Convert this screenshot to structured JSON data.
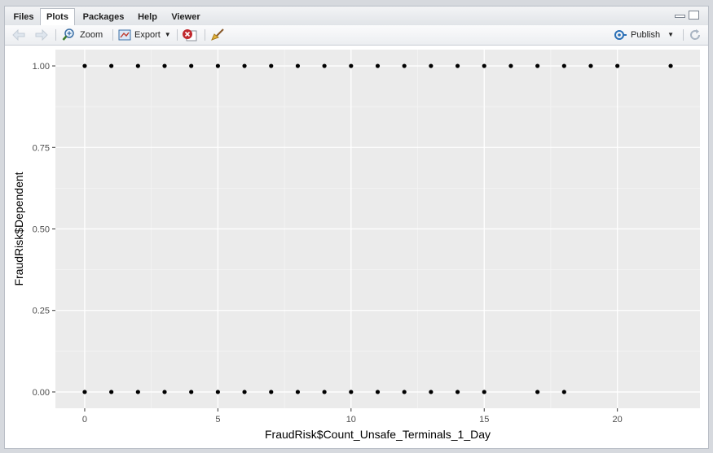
{
  "tabs": [
    {
      "label": "Files",
      "active": false
    },
    {
      "label": "Plots",
      "active": true
    },
    {
      "label": "Packages",
      "active": false
    },
    {
      "label": "Help",
      "active": false
    },
    {
      "label": "Viewer",
      "active": false
    }
  ],
  "toolbar": {
    "back_icon": "arrow-left-icon",
    "forward_icon": "arrow-right-icon",
    "zoom_label": "Zoom",
    "export_label": "Export",
    "remove_icon": "remove-plot-icon",
    "clear_icon": "broom-icon",
    "publish_label": "Publish",
    "refresh_icon": "refresh-icon"
  },
  "chart_data": {
    "type": "scatter",
    "xlabel": "FraudRisk$Count_Unsafe_Terminals_1_Day",
    "ylabel": "FraudRisk$Dependent",
    "xlim": [
      -1.1,
      23.1
    ],
    "ylim": [
      -0.05,
      1.05
    ],
    "x_ticks": [
      0,
      5,
      10,
      15,
      20
    ],
    "x_tick_labels": [
      "0",
      "5",
      "10",
      "15",
      "20"
    ],
    "y_ticks": [
      0,
      0.25,
      0.5,
      0.75,
      1
    ],
    "y_tick_labels": [
      "0.00",
      "0.25",
      "0.50",
      "0.75",
      "1.00"
    ],
    "grid": true,
    "points": [
      {
        "x": 0,
        "y": 1
      },
      {
        "x": 1,
        "y": 1
      },
      {
        "x": 2,
        "y": 1
      },
      {
        "x": 3,
        "y": 1
      },
      {
        "x": 4,
        "y": 1
      },
      {
        "x": 5,
        "y": 1
      },
      {
        "x": 6,
        "y": 1
      },
      {
        "x": 7,
        "y": 1
      },
      {
        "x": 8,
        "y": 1
      },
      {
        "x": 9,
        "y": 1
      },
      {
        "x": 10,
        "y": 1
      },
      {
        "x": 11,
        "y": 1
      },
      {
        "x": 12,
        "y": 1
      },
      {
        "x": 13,
        "y": 1
      },
      {
        "x": 14,
        "y": 1
      },
      {
        "x": 15,
        "y": 1
      },
      {
        "x": 16,
        "y": 1
      },
      {
        "x": 17,
        "y": 1
      },
      {
        "x": 18,
        "y": 1
      },
      {
        "x": 19,
        "y": 1
      },
      {
        "x": 20,
        "y": 1
      },
      {
        "x": 22,
        "y": 1
      },
      {
        "x": 0,
        "y": 0
      },
      {
        "x": 1,
        "y": 0
      },
      {
        "x": 2,
        "y": 0
      },
      {
        "x": 3,
        "y": 0
      },
      {
        "x": 4,
        "y": 0
      },
      {
        "x": 5,
        "y": 0
      },
      {
        "x": 6,
        "y": 0
      },
      {
        "x": 7,
        "y": 0
      },
      {
        "x": 8,
        "y": 0
      },
      {
        "x": 9,
        "y": 0
      },
      {
        "x": 10,
        "y": 0
      },
      {
        "x": 11,
        "y": 0
      },
      {
        "x": 12,
        "y": 0
      },
      {
        "x": 13,
        "y": 0
      },
      {
        "x": 14,
        "y": 0
      },
      {
        "x": 15,
        "y": 0
      },
      {
        "x": 17,
        "y": 0
      },
      {
        "x": 18,
        "y": 0
      }
    ]
  }
}
